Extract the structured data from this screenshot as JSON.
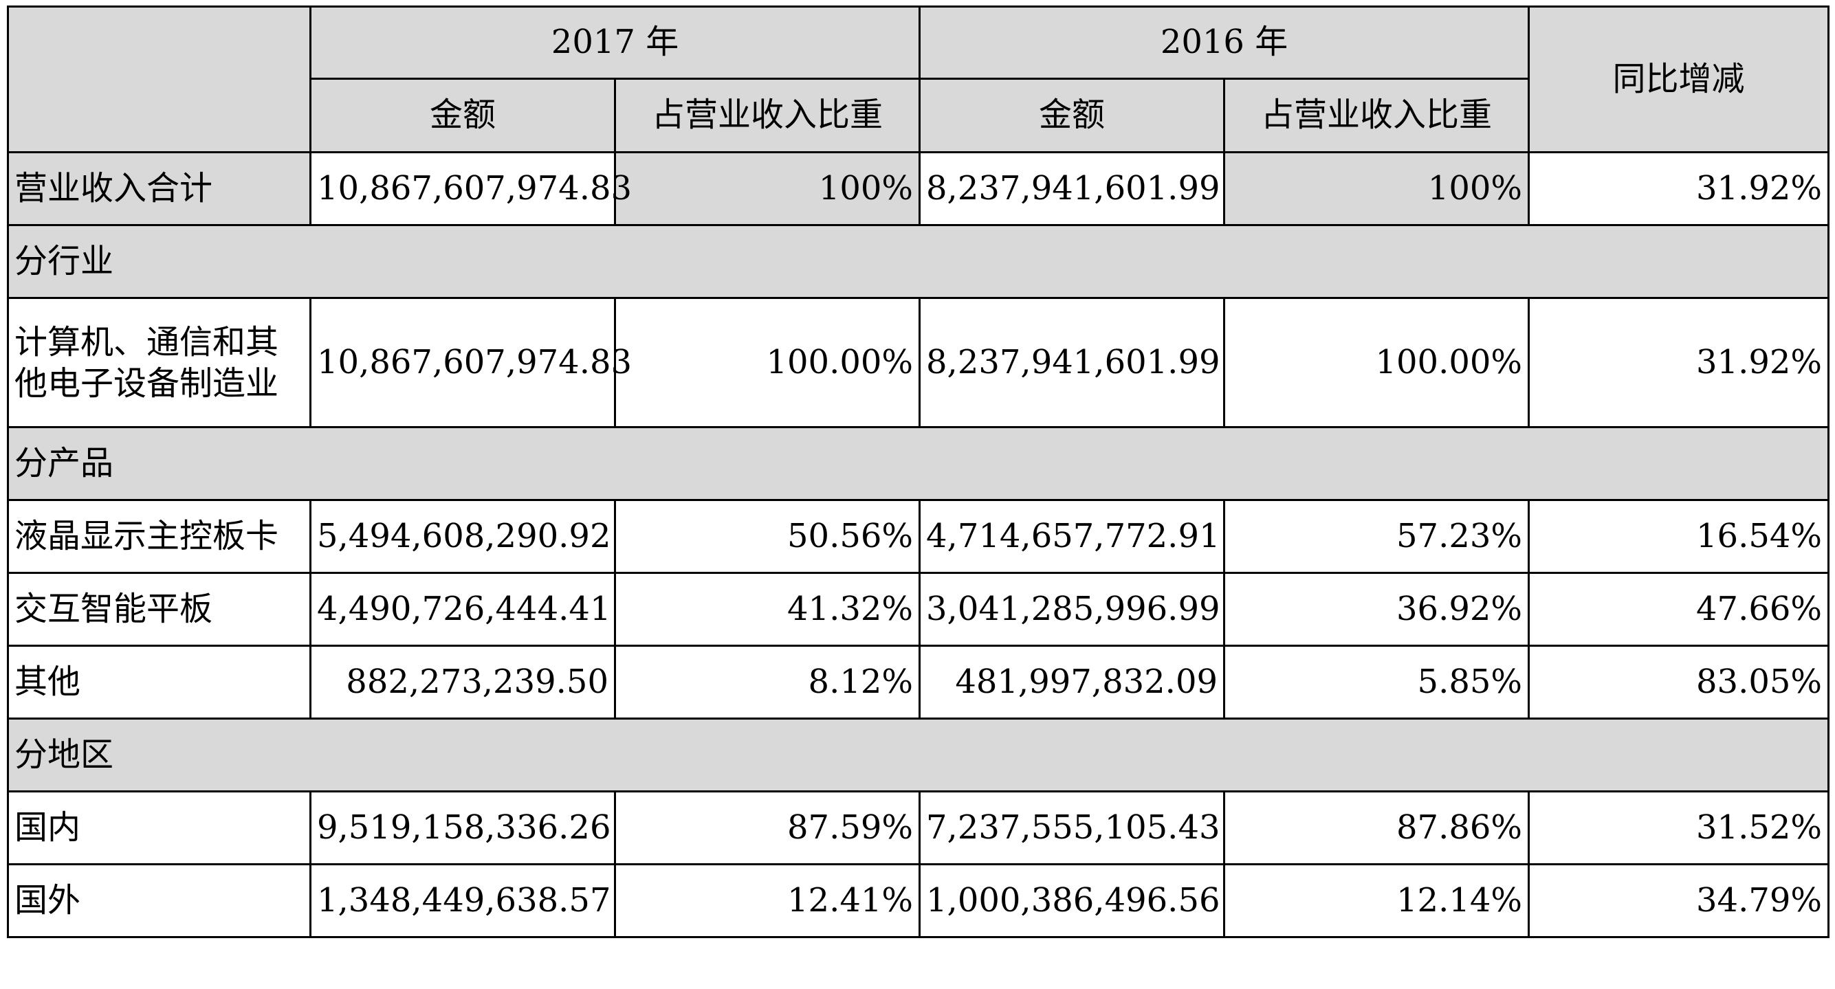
{
  "header": {
    "year_2017": "2017 年",
    "year_2016": "2016 年",
    "amount_2017": "金额",
    "share_2017": "占营业收入比重",
    "amount_2016": "金额",
    "share_2016": "占营业收入比重",
    "yoy": "同比增减"
  },
  "total": {
    "label": "营业收入合计",
    "amount_2017": "10,867,607,974.83",
    "share_2017": "100%",
    "amount_2016": "8,237,941,601.99",
    "share_2016": "100%",
    "yoy": "31.92%"
  },
  "sections": [
    {
      "title": "分行业",
      "rows": [
        {
          "label": "计算机、通信和其他电子设备制造业",
          "amount_2017": "10,867,607,974.83",
          "share_2017": "100.00%",
          "amount_2016": "8,237,941,601.99",
          "share_2016": "100.00%",
          "yoy": "31.92%"
        }
      ]
    },
    {
      "title": "分产品",
      "rows": [
        {
          "label": "液晶显示主控板卡",
          "amount_2017": "5,494,608,290.92",
          "share_2017": "50.56%",
          "amount_2016": "4,714,657,772.91",
          "share_2016": "57.23%",
          "yoy": "16.54%"
        },
        {
          "label": "交互智能平板",
          "amount_2017": "4,490,726,444.41",
          "share_2017": "41.32%",
          "amount_2016": "3,041,285,996.99",
          "share_2016": "36.92%",
          "yoy": "47.66%"
        },
        {
          "label": "其他",
          "amount_2017": "882,273,239.50",
          "share_2017": "8.12%",
          "amount_2016": "481,997,832.09",
          "share_2016": "5.85%",
          "yoy": "83.05%"
        }
      ]
    },
    {
      "title": "分地区",
      "rows": [
        {
          "label": "国内",
          "amount_2017": "9,519,158,336.26",
          "share_2017": "87.59%",
          "amount_2016": "7,237,555,105.43",
          "share_2016": "87.86%",
          "yoy": "31.52%"
        },
        {
          "label": "国外",
          "amount_2017": "1,348,449,638.57",
          "share_2017": "12.41%",
          "amount_2016": "1,000,386,496.56",
          "share_2016": "12.14%",
          "yoy": "34.79%"
        }
      ]
    }
  ]
}
